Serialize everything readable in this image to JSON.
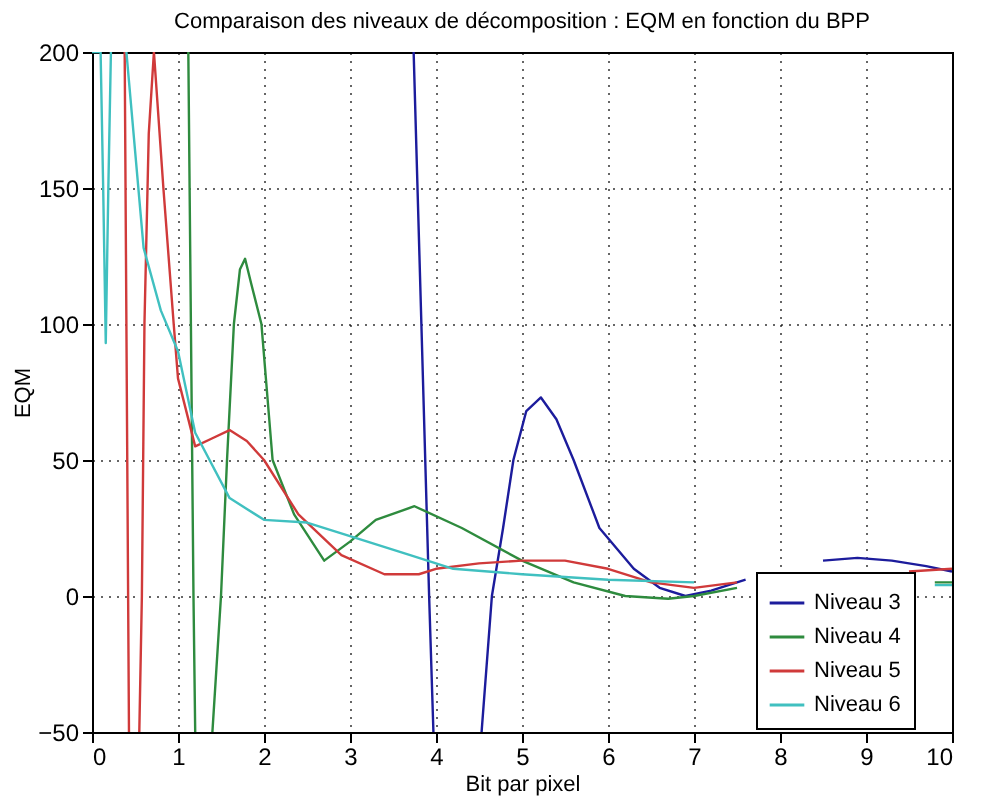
{
  "chart_data": {
    "type": "line",
    "title": "Comparaison des niveaux de décomposition : EQM en fonction du BPP",
    "xlabel": "Bit par pixel",
    "ylabel": "EQM",
    "xlim": [
      0,
      10
    ],
    "xticks": [
      0,
      1,
      2,
      3,
      4,
      5,
      6,
      7,
      8,
      9,
      10
    ],
    "ylim": [
      -50,
      200
    ],
    "yticks": [
      -50,
      0,
      50,
      100,
      150,
      200
    ],
    "grid": true,
    "legend": "bottom right",
    "marker": "none",
    "line_style": "solid",
    "series": [
      {
        "name": "Niveau 3",
        "color": "#1c1c9c",
        "x": [
          3.74,
          3.83,
          3.92,
          3.97,
          4.2,
          4.53,
          4.65,
          4.78,
          4.9,
          5.05,
          5.22,
          5.4,
          5.6,
          5.9,
          6.3,
          6.6,
          6.9,
          7.2,
          7.6,
          8.0,
          8.5,
          8.9,
          9.3,
          9.7,
          10
        ],
        "values": [
          200,
          100,
          0,
          -50,
          null,
          -50,
          0,
          25,
          50,
          68,
          73,
          65,
          50,
          25,
          10,
          3,
          0,
          2,
          6,
          null,
          13,
          14,
          13,
          11,
          9
        ]
      },
      {
        "name": "Niveau 4",
        "color": "#2e8b3e",
        "x": [
          1.12,
          1.15,
          1.18,
          1.2,
          1.3,
          1.4,
          1.5,
          1.57,
          1.65,
          1.72,
          1.78,
          1.85,
          1.97,
          2.1,
          2.35,
          2.7,
          3.0,
          3.3,
          3.75,
          4.3,
          5.0,
          5.6,
          6.2,
          6.7,
          7.0,
          7.5,
          8,
          9,
          9.8,
          10
        ],
        "values": [
          200,
          100,
          0,
          -50,
          null,
          -50,
          0,
          50,
          100,
          120,
          124,
          115,
          100,
          50,
          30,
          13,
          20,
          28,
          33,
          25,
          13,
          5,
          0,
          -1,
          0,
          3,
          null,
          null,
          5,
          5
        ]
      },
      {
        "name": "Niveau 5",
        "color": "#d03a3a",
        "x": [
          0.38,
          0.41,
          0.43,
          0.5,
          0.55,
          0.58,
          0.61,
          0.66,
          0.72,
          0.83,
          0.95,
          1.0,
          1.2,
          1.4,
          1.6,
          1.8,
          2.0,
          2.4,
          2.9,
          3.4,
          3.8,
          4.0,
          4.5,
          5.0,
          5.5,
          6.0,
          6.5,
          7.0,
          7.5,
          8.5,
          9.5,
          10
        ],
        "values": [
          200,
          50,
          -50,
          null,
          -50,
          0,
          100,
          170,
          200,
          150,
          100,
          80,
          55,
          58,
          61,
          57,
          50,
          30,
          15,
          8,
          8,
          10,
          12,
          13,
          13,
          10,
          5,
          3,
          5,
          null,
          9,
          10
        ]
      },
      {
        "name": "Niveau 6",
        "color": "#40c0c0",
        "x": [
          0,
          0.1,
          0.13,
          0.16,
          0.19,
          0.22,
          0.3,
          0.4,
          0.6,
          0.8,
          1.0,
          1.2,
          1.6,
          2.0,
          2.5,
          3.0,
          3.7,
          4.2,
          5.0,
          6.0,
          7.0,
          8,
          9,
          9.8,
          10
        ],
        "values": [
          200,
          200,
          150,
          93,
          150,
          200,
          null,
          200,
          128,
          105,
          90,
          60,
          36,
          28,
          27,
          22,
          15,
          10,
          8,
          6,
          5,
          null,
          null,
          4,
          4
        ]
      }
    ]
  }
}
